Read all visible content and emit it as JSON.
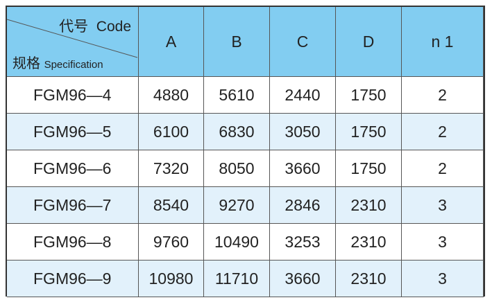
{
  "header": {
    "code_label": "代号",
    "code": "Code",
    "spec_label": "规格",
    "spec": "Specification",
    "columns": [
      "A",
      "B",
      "C",
      "D",
      "n 1"
    ]
  },
  "table": {
    "rows": [
      [
        "FGM96—4",
        4880,
        5610,
        2440,
        1750,
        2
      ],
      [
        "FGM96—5",
        6100,
        6830,
        3050,
        1750,
        2
      ],
      [
        "FGM96—6",
        7320,
        8050,
        3660,
        1750,
        2
      ],
      [
        "FGM96—7",
        8540,
        9270,
        2846,
        2310,
        3
      ],
      [
        "FGM96—8",
        9760,
        10490,
        3253,
        2310,
        3
      ],
      [
        "FGM96—9",
        10980,
        11710,
        3660,
        2310,
        3
      ]
    ]
  }
}
